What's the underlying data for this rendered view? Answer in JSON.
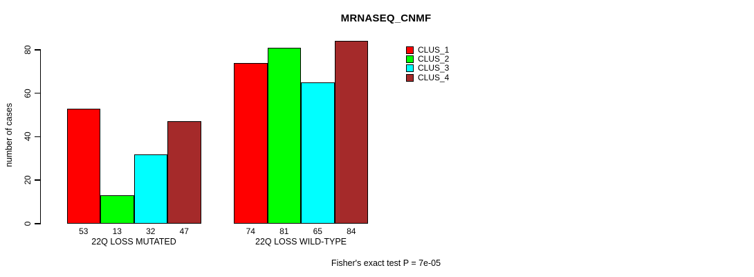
{
  "chart_data": {
    "type": "bar",
    "title": "MRNASEQ_CNMF",
    "ylabel": "number of cases",
    "xlabel": "",
    "categories": [
      "22Q LOSS MUTATED",
      "22Q LOSS WILD-TYPE"
    ],
    "series": [
      {
        "name": "CLUS_1",
        "color": "#FF0000",
        "values": [
          53,
          74
        ]
      },
      {
        "name": "CLUS_2",
        "color": "#00FF00",
        "values": [
          13,
          81
        ]
      },
      {
        "name": "CLUS_3",
        "color": "#00FFFF",
        "values": [
          32,
          65
        ]
      },
      {
        "name": "CLUS_4",
        "color": "#A52A2A",
        "values": [
          47,
          84
        ]
      }
    ],
    "bar_value_labels": {
      "22Q LOSS MUTATED": [
        53,
        13,
        32,
        47
      ],
      "22Q LOSS WILD-TYPE": [
        74,
        81,
        65,
        84
      ]
    },
    "yticks": [
      0,
      20,
      40,
      60,
      80
    ],
    "ylim": [
      0,
      84
    ],
    "grid": false,
    "legend_position": "upper-right",
    "annotation": "Fisher's exact test P = 7e-05"
  }
}
